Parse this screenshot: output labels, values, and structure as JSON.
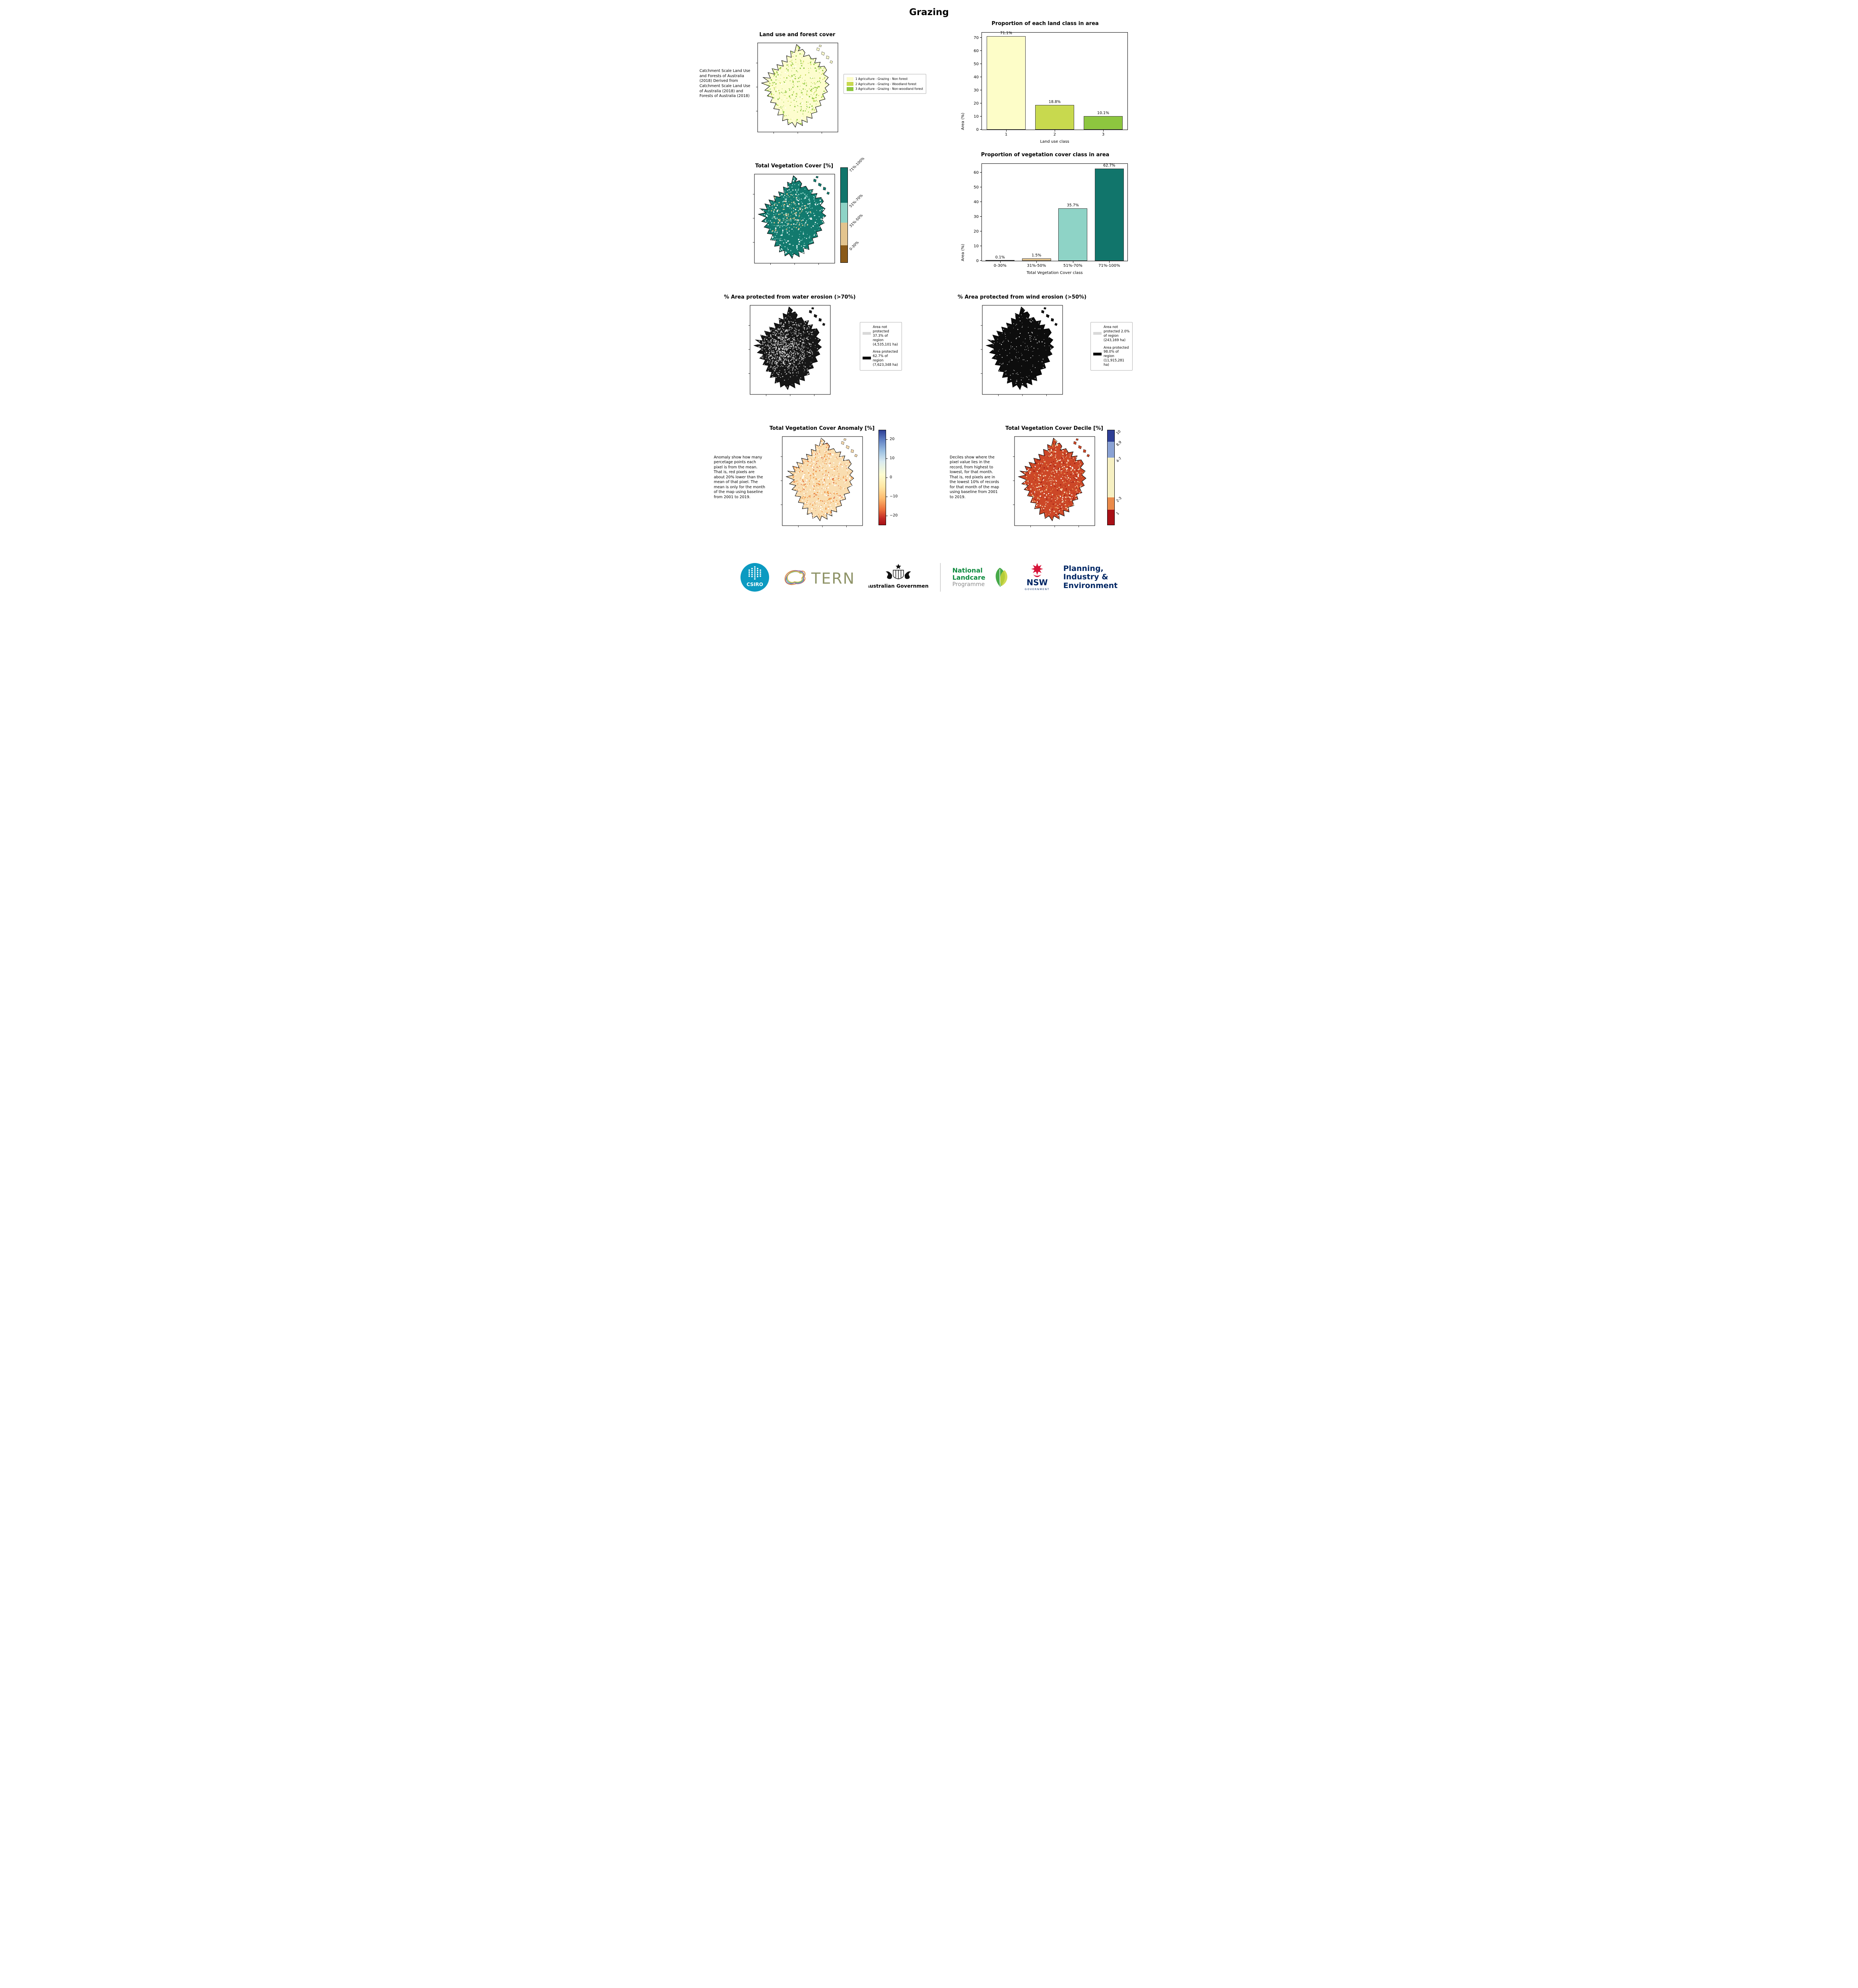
{
  "page": {
    "title": "Grazing"
  },
  "land_use": {
    "title": "Land use and forest cover",
    "description": "Catchment Scale Land Use and Forests of Australia (2018) Derived from Catchment Scale Land Use of Australia (2018) and Forests of Australia (2018)",
    "legend": [
      {
        "label": "1 Agriculture - Grazing - Non forest",
        "color": "#fdfdc8"
      },
      {
        "label": "2 Agriculture - Grazing - Woodland forest",
        "color": "#c8d94e"
      },
      {
        "label": "3 Agriculture - Grazing - Non-woodland forest",
        "color": "#8dc63f"
      }
    ]
  },
  "veg_cover": {
    "title": "Total Vegetation Cover [%]",
    "colorbar": [
      {
        "label": "71%-100%",
        "color": "#11756b"
      },
      {
        "label": "51%-70%",
        "color": "#8ed3c6"
      },
      {
        "label": "31%-50%",
        "color": "#e3c48e"
      },
      {
        "label": "0-30%",
        "color": "#8a5a19"
      }
    ]
  },
  "water_erosion": {
    "title": "% Area protected from water erosion (>70%)",
    "legend": [
      {
        "label": "Area not protected 37.3% of region (4,535,101 ha)",
        "color": "#d9d9d9"
      },
      {
        "label": "Area protected 62.7% of region (7,623,348 ha)",
        "color": "#000000"
      }
    ]
  },
  "wind_erosion": {
    "title": "% Area protected from wind erosion (>50%)",
    "legend": [
      {
        "label": "Area not protected 2.0% of region (243,169 ha)",
        "color": "#d9d9d9"
      },
      {
        "label": "Area protected 98.0% of region (11,915,281 ha)",
        "color": "#000000"
      }
    ]
  },
  "anomaly": {
    "title": "Total Vegetation Cover Anomaly [%]",
    "description": "Anomaly show how many percetage points each pixel is from the mean. That is, red pixels are about 20% lower than the mean of that pixel. The mean is only for the month of the map using baseline from 2001 to 2019.",
    "colorbar_ticks": [
      "20",
      "10",
      "0",
      "−10",
      "−20"
    ]
  },
  "decile": {
    "title": "Total Vegetation Cover Decile [%]",
    "description": "Deciles show where the pixel value lies in the record, from highest to lowest, for that month. That is, red pixels are in the lowest 10% of records for that month of the map using baseline from 2001 to 2019.",
    "colorbar": [
      {
        "label": "10",
        "color": "#2e3f96"
      },
      {
        "label": "8,9",
        "color": "#8aa2d4"
      },
      {
        "label": "4-7",
        "color": "#f6f0c2"
      },
      {
        "label": "2-3",
        "color": "#ea8a4a"
      },
      {
        "label": "1",
        "color": "#a81016"
      }
    ]
  },
  "chart_data": [
    {
      "type": "bar",
      "title": "Proportion of each land class in area",
      "categories": [
        "1",
        "2",
        "3"
      ],
      "values": [
        71.1,
        18.8,
        10.1
      ],
      "labels": [
        "71.1%",
        "18.8%",
        "10.1%"
      ],
      "colors": [
        "#fdfdc8",
        "#c8d94e",
        "#8dc63f"
      ],
      "xlabel": "Land use class",
      "ylabel": "Area (%)",
      "ylim": [
        0,
        74
      ],
      "yticks": [
        0,
        10,
        20,
        30,
        40,
        50,
        60,
        70
      ],
      "legend_position": "none",
      "grid": false
    },
    {
      "type": "bar",
      "title": "Proportion of vegetation cover class in area",
      "categories": [
        "0-30%",
        "31%-50%",
        "51%-70%",
        "71%-100%"
      ],
      "values": [
        0.1,
        1.5,
        35.7,
        62.7
      ],
      "labels": [
        "0.1%",
        "1.5%",
        "35.7%",
        "62.7%"
      ],
      "colors": [
        "#8a5a19",
        "#e3c48e",
        "#8ed3c6",
        "#11756b"
      ],
      "xlabel": "Total Vegetation Cover class",
      "ylabel": "Area (%)",
      "ylim": [
        0,
        66
      ],
      "yticks": [
        0,
        10,
        20,
        30,
        40,
        50,
        60
      ],
      "legend_position": "none",
      "grid": false
    }
  ],
  "footer": {
    "csiro": "CSIRO",
    "tern": "TERN",
    "aus_gov": "Australian Government",
    "landcare_line1": "National",
    "landcare_line2": "Landcare",
    "landcare_line3": "Programme",
    "nsw": "NSW",
    "nsw_sub": "GOVERNMENT",
    "planning_line1": "Planning,",
    "planning_line2": "Industry &",
    "planning_line3": "Environment"
  }
}
